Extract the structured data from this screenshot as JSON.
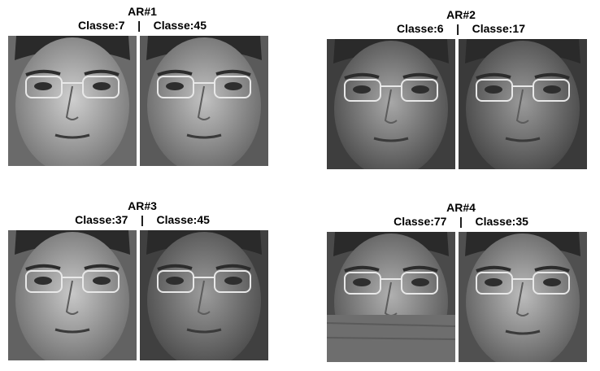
{
  "panels": [
    {
      "title": "AR#1",
      "classes_line": "Classe:7    |    Classe:45",
      "left_face": {
        "tone_light": "#cfcfcf",
        "tone_dark": "#6a6a6a",
        "occlusion": "none"
      },
      "right_face": {
        "tone_light": "#c2c2c2",
        "tone_dark": "#5a5a5a",
        "occlusion": "none"
      }
    },
    {
      "title": "AR#2",
      "classes_line": "Classe:6    |    Classe:17",
      "left_face": {
        "tone_light": "#a8a8a8",
        "tone_dark": "#3e3e3e",
        "occlusion": "none"
      },
      "right_face": {
        "tone_light": "#9a9a9a",
        "tone_dark": "#3a3a3a",
        "occlusion": "none"
      }
    },
    {
      "title": "AR#3",
      "classes_line": "Classe:37    |    Classe:45",
      "left_face": {
        "tone_light": "#c8c8c8",
        "tone_dark": "#626262",
        "occlusion": "none"
      },
      "right_face": {
        "tone_light": "#9c9c9c",
        "tone_dark": "#404040",
        "occlusion": "none"
      }
    },
    {
      "title": "AR#4",
      "classes_line": "Classe:77    |    Classe:35",
      "left_face": {
        "tone_light": "#b0b0b0",
        "tone_dark": "#4a4a4a",
        "occlusion": "scarf"
      },
      "right_face": {
        "tone_light": "#bcbcbc",
        "tone_dark": "#505050",
        "occlusion": "none"
      }
    }
  ]
}
